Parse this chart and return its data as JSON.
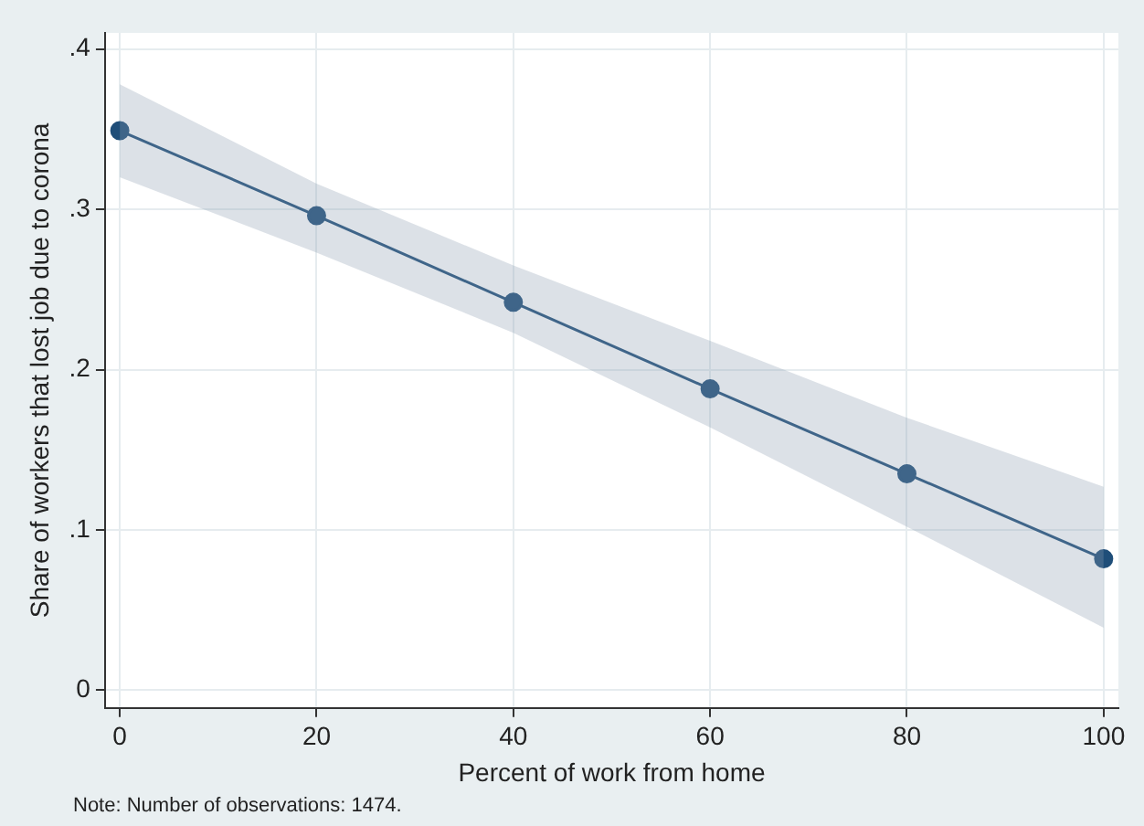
{
  "chart_data": {
    "type": "line",
    "x": [
      0,
      20,
      40,
      60,
      80,
      100
    ],
    "series": [
      {
        "color": "#1f4e79",
        "values": [
          0.349,
          0.296,
          0.242,
          0.188,
          0.135,
          0.082
        ],
        "lower": [
          0.32,
          0.273,
          0.223,
          0.164,
          0.102,
          0.039
        ],
        "upper": [
          0.378,
          0.316,
          0.265,
          0.218,
          0.17,
          0.127
        ]
      }
    ],
    "xlabel": "Percent of work from home",
    "ylabel": "Share of workers that lost job due to corona",
    "xlim": [
      -1.5,
      101.5
    ],
    "xticks": [
      0,
      20,
      40,
      60,
      80,
      100
    ],
    "ylim": [
      -0.011,
      0.41
    ],
    "yticks": [
      {
        "value": 0,
        "label": "0"
      },
      {
        "value": 0.1,
        "label": ".1"
      },
      {
        "value": 0.2,
        "label": ".2"
      },
      {
        "value": 0.3,
        "label": ".3"
      },
      {
        "value": 0.4,
        "label": ".4"
      }
    ],
    "grid": true,
    "legend": false,
    "marker": "circle",
    "line_style": "solid",
    "annotations": [
      "Note: Number of observations: 1474."
    ]
  }
}
